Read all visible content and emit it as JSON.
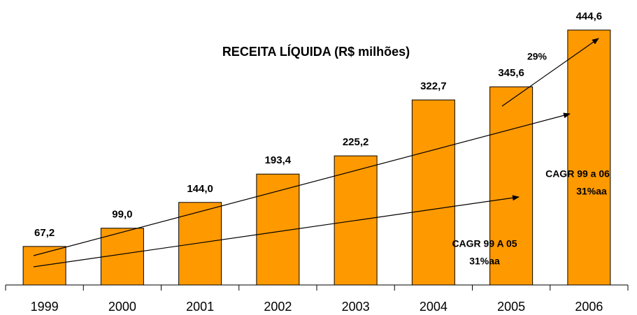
{
  "chart_data": {
    "type": "bar",
    "title": "RECEITA LÍQUIDA (R$ milhões)",
    "categories": [
      "1999",
      "2000",
      "2001",
      "2002",
      "2003",
      "2004",
      "2005",
      "2006"
    ],
    "values": [
      67.2,
      99.0,
      144.0,
      193.4,
      225.2,
      322.7,
      345.6,
      444.6
    ],
    "value_labels": [
      "67,2",
      "99,0",
      "144,0",
      "193,4",
      "225,2",
      "322,7",
      "345,6",
      "444,6"
    ],
    "color": "#ff9900",
    "annotations": [
      "29%",
      "CAGR 99 a 06",
      "31%aa",
      "CAGR 99 A 05",
      "31%aa"
    ]
  }
}
